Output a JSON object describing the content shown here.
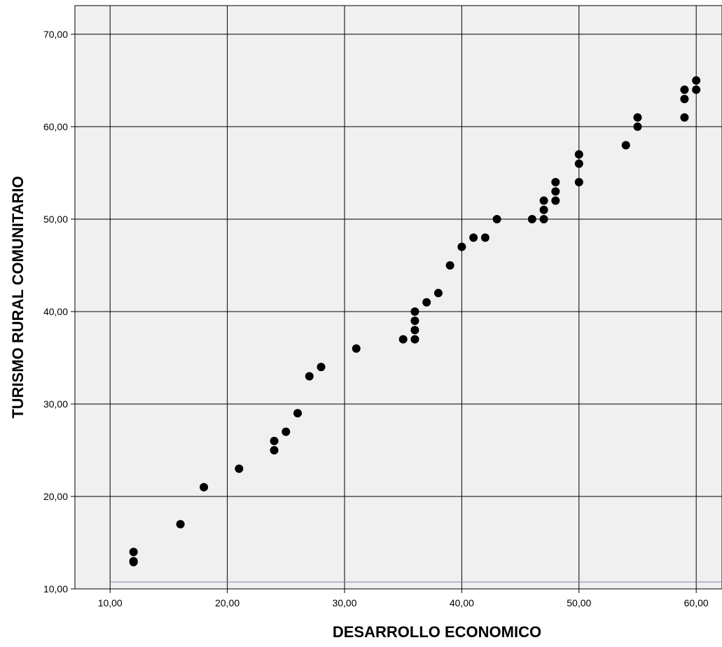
{
  "chart_data": {
    "type": "scatter",
    "title": "",
    "xlabel": "DESARROLLO ECONOMICO",
    "ylabel": "TURISMO RURAL COMUNITARIO",
    "xlim": [
      7.0,
      62.2
    ],
    "ylim": [
      10.0,
      73.1
    ],
    "x_ticks": [
      10,
      20,
      30,
      40,
      50,
      60
    ],
    "x_tick_labels": [
      "10,00",
      "20,00",
      "30,00",
      "40,00",
      "50,00",
      "60,00"
    ],
    "y_ticks": [
      10,
      20,
      30,
      40,
      50,
      60,
      70
    ],
    "y_tick_labels": [
      "10,00",
      "20,00",
      "30,00",
      "40,00",
      "50,00",
      "60,00",
      "70,00"
    ],
    "grid": true,
    "reference_line_y": 10.75,
    "colors": {
      "plot_background": "#f0f0f0",
      "gridline": "#000000",
      "marker": "#000000",
      "reference_line": "#7f7fa0"
    },
    "points": [
      {
        "x": 12,
        "y": 14
      },
      {
        "x": 12,
        "y": 13
      },
      {
        "x": 12,
        "y": 12.9
      },
      {
        "x": 16,
        "y": 17
      },
      {
        "x": 18,
        "y": 21
      },
      {
        "x": 21,
        "y": 23
      },
      {
        "x": 24,
        "y": 26
      },
      {
        "x": 24,
        "y": 25
      },
      {
        "x": 25,
        "y": 27
      },
      {
        "x": 26,
        "y": 29
      },
      {
        "x": 27,
        "y": 33
      },
      {
        "x": 28,
        "y": 34
      },
      {
        "x": 31,
        "y": 36
      },
      {
        "x": 35,
        "y": 37
      },
      {
        "x": 36,
        "y": 40
      },
      {
        "x": 36,
        "y": 39
      },
      {
        "x": 36,
        "y": 38
      },
      {
        "x": 36,
        "y": 37
      },
      {
        "x": 37,
        "y": 41
      },
      {
        "x": 38,
        "y": 42
      },
      {
        "x": 39,
        "y": 45
      },
      {
        "x": 40,
        "y": 47
      },
      {
        "x": 41,
        "y": 48
      },
      {
        "x": 42,
        "y": 48
      },
      {
        "x": 43,
        "y": 50
      },
      {
        "x": 46,
        "y": 50
      },
      {
        "x": 47,
        "y": 52
      },
      {
        "x": 47,
        "y": 51
      },
      {
        "x": 47,
        "y": 50
      },
      {
        "x": 48,
        "y": 54
      },
      {
        "x": 48,
        "y": 53
      },
      {
        "x": 48,
        "y": 52
      },
      {
        "x": 50,
        "y": 57
      },
      {
        "x": 50,
        "y": 56
      },
      {
        "x": 50,
        "y": 54
      },
      {
        "x": 54,
        "y": 58
      },
      {
        "x": 55,
        "y": 61
      },
      {
        "x": 55,
        "y": 60
      },
      {
        "x": 59,
        "y": 64
      },
      {
        "x": 59,
        "y": 63
      },
      {
        "x": 59,
        "y": 61
      },
      {
        "x": 60,
        "y": 65
      },
      {
        "x": 60,
        "y": 64
      }
    ]
  }
}
